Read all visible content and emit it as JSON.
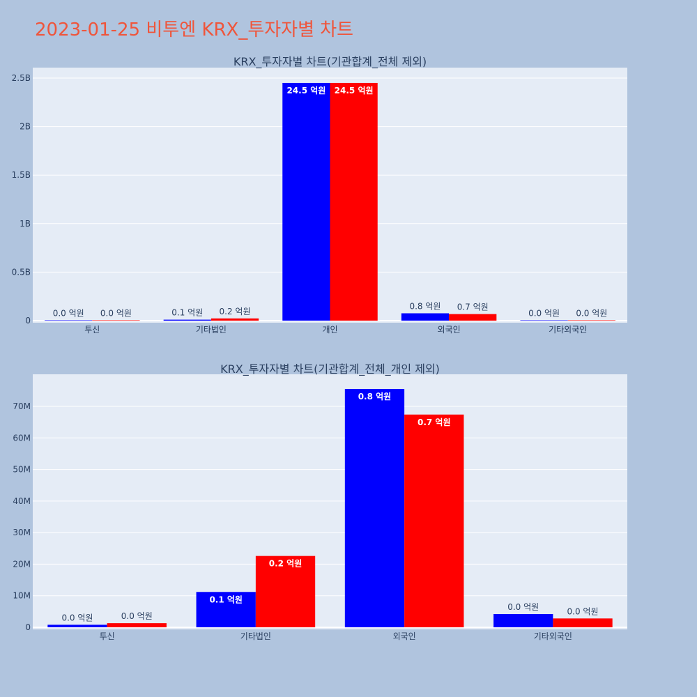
{
  "page": {
    "title": "2023-01-25 비투엔 KRX_투자자별 차트",
    "background": "#b0c4de",
    "title_color": "#ef553b"
  },
  "colors": {
    "plot_bg": "#e5ecf6",
    "grid": "#ffffff",
    "text": "#2a3f5f"
  },
  "chart_data": [
    {
      "type": "bar",
      "title": "KRX_투자자별 차트(기관합계_전체 제외)",
      "categories": [
        "투신",
        "기타법인",
        "개인",
        "외국인",
        "기타외국인"
      ],
      "ylim": [
        0,
        2500000000
      ],
      "yticks": [
        0,
        500000000,
        1000000000,
        1500000000,
        2000000000,
        2500000000
      ],
      "ytick_labels": [
        "0",
        "0.5B",
        "1B",
        "1.5B",
        "2B",
        "2.5B"
      ],
      "grid": true,
      "series": [
        {
          "color": "#0000ff",
          "values": [
            0,
            10000000,
            2450000000,
            75500000,
            4000000
          ],
          "labels": [
            "0.0 억원",
            "0.1 억원",
            "24.5 억원",
            "0.8 억원",
            "0.0 억원"
          ]
        },
        {
          "color": "#ff0000",
          "values": [
            1200000,
            22500000,
            2450000000,
            67500000,
            2800000
          ],
          "labels": [
            "0.0 억원",
            "0.2 억원",
            "24.5 억원",
            "0.7 억원",
            "0.0 억원"
          ]
        }
      ]
    },
    {
      "type": "bar",
      "title": "KRX_투자자별 차트(기관합계_전체_개인 제외)",
      "categories": [
        "투신",
        "기타법인",
        "외국인",
        "기타외국인"
      ],
      "ylim": [
        0,
        80000000
      ],
      "yticks": [
        0,
        10000000,
        20000000,
        30000000,
        40000000,
        50000000,
        60000000,
        70000000
      ],
      "ytick_labels": [
        "0",
        "10M",
        "20M",
        "30M",
        "40M",
        "50M",
        "60M",
        "70M"
      ],
      "grid": true,
      "series": [
        {
          "color": "#0000ff",
          "values": [
            800000,
            11200000,
            75500000,
            4200000
          ],
          "labels": [
            "0.0 억원",
            "0.1 억원",
            "0.8 억원",
            "0.0 억원"
          ]
        },
        {
          "color": "#ff0000",
          "values": [
            1300000,
            22600000,
            67400000,
            2800000
          ],
          "labels": [
            "0.0 억원",
            "0.2 억원",
            "0.7 억원",
            "0.0 억원"
          ]
        }
      ]
    }
  ]
}
